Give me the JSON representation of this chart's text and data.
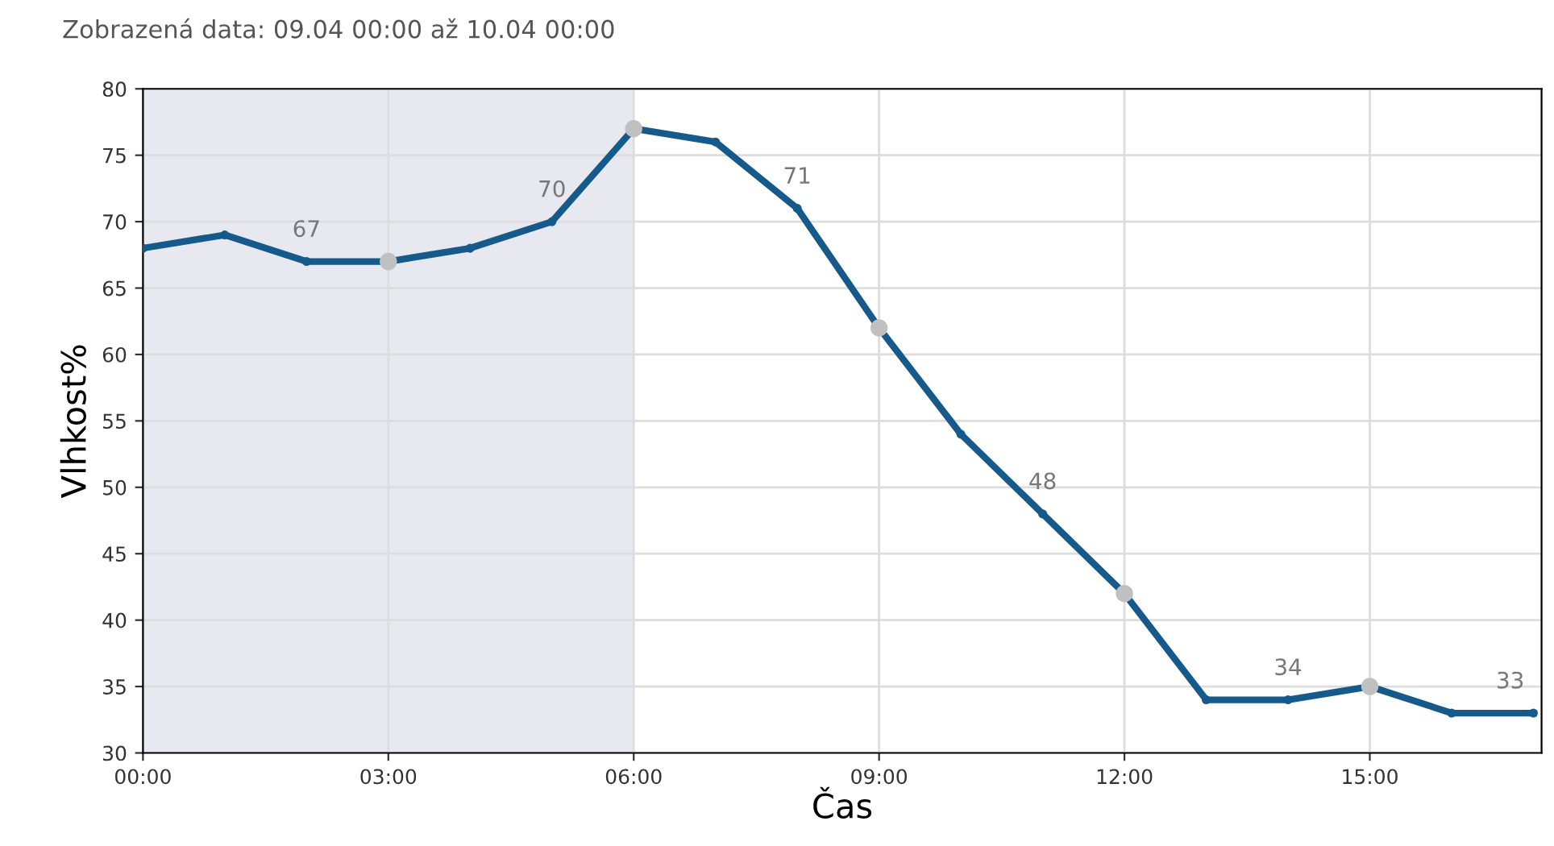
{
  "chart_data": {
    "type": "line",
    "subtitle": "Zobrazená data: 09.04 00:00 až 10.04 00:00",
    "xlabel": "Čas",
    "ylabel": "Vlhkost%",
    "x": [
      0,
      1,
      2,
      3,
      4,
      5,
      6,
      7,
      8,
      9,
      10,
      11,
      12,
      13,
      14,
      15,
      16,
      17
    ],
    "series": [
      {
        "color": "#155a8a",
        "marker": "circle",
        "values": [
          68,
          69,
          67,
          67,
          68,
          70,
          77,
          76,
          71,
          62,
          54,
          48,
          42,
          34,
          34,
          35,
          33,
          33
        ],
        "value_labels": [
          null,
          null,
          "67",
          null,
          null,
          "70",
          null,
          null,
          "71",
          null,
          null,
          "48",
          null,
          null,
          "34",
          null,
          null,
          "33"
        ]
      },
      {
        "type": "scatter",
        "color": "#c0c0c0",
        "marker": "circle",
        "x": [
          3,
          6,
          9,
          12,
          15
        ],
        "values": [
          67,
          77,
          62,
          42,
          35
        ]
      }
    ],
    "xlim": [
      0,
      17.1
    ],
    "ylim": [
      30,
      80
    ],
    "xticks": [
      {
        "value": 0,
        "label": "00:00"
      },
      {
        "value": 3,
        "label": "03:00"
      },
      {
        "value": 6,
        "label": "06:00"
      },
      {
        "value": 9,
        "label": "09:00"
      },
      {
        "value": 12,
        "label": "12:00"
      },
      {
        "value": 15,
        "label": "15:00"
      }
    ],
    "yticks": [
      30,
      35,
      40,
      45,
      50,
      55,
      60,
      65,
      70,
      75,
      80
    ],
    "bands": [
      {
        "axis": "x",
        "from": 0,
        "to": 6,
        "color": "#e8e9f0"
      }
    ],
    "grid": true,
    "legend": false,
    "line_style": "solid"
  }
}
